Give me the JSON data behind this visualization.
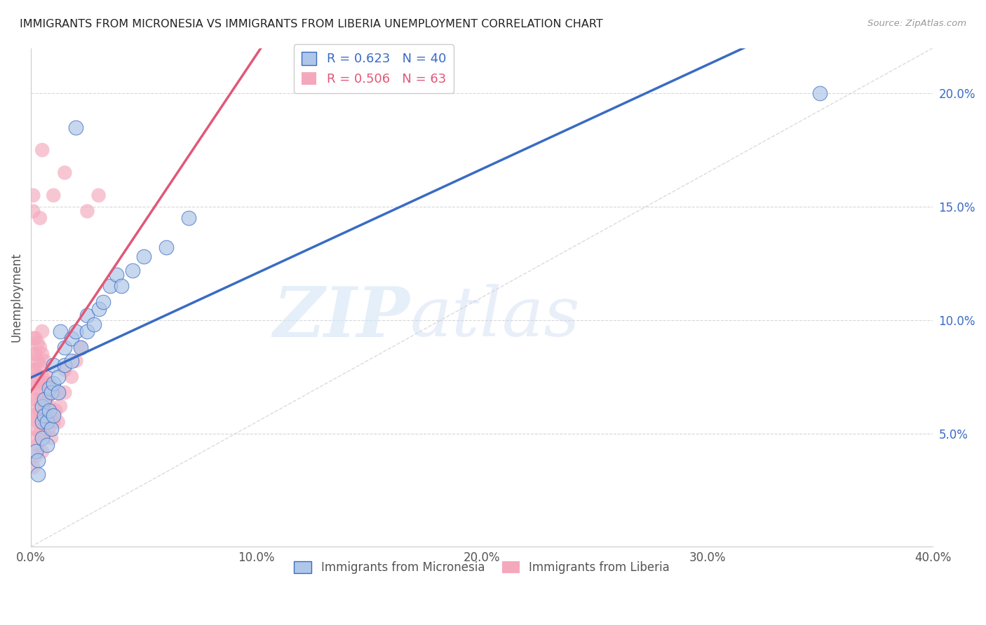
{
  "title": "IMMIGRANTS FROM MICRONESIA VS IMMIGRANTS FROM LIBERIA UNEMPLOYMENT CORRELATION CHART",
  "source": "Source: ZipAtlas.com",
  "xlabel": "",
  "ylabel": "Unemployment",
  "xlim": [
    0.0,
    0.4
  ],
  "ylim": [
    0.0,
    0.22
  ],
  "xticks": [
    0.0,
    0.1,
    0.2,
    0.3,
    0.4
  ],
  "xtick_labels": [
    "0.0%",
    "10.0%",
    "20.0%",
    "30.0%",
    "40.0%"
  ],
  "yticks": [
    0.05,
    0.1,
    0.15,
    0.2
  ],
  "ytick_labels": [
    "5.0%",
    "10.0%",
    "15.0%",
    "20.0%"
  ],
  "micronesia_color": "#aec6e8",
  "liberia_color": "#f4a8bc",
  "micronesia_R": 0.623,
  "micronesia_N": 40,
  "liberia_R": 0.506,
  "liberia_N": 63,
  "micronesia_label": "Immigrants from Micronesia",
  "liberia_label": "Immigrants from Liberia",
  "watermark_zip": "ZIP",
  "watermark_atlas": "atlas",
  "background_color": "#ffffff",
  "grid_color": "#d8d8d8",
  "micronesia_line_color": "#3a6bc4",
  "liberia_line_color": "#e05878",
  "ref_line_color": "#cccccc",
  "micronesia_points": [
    [
      0.002,
      0.042
    ],
    [
      0.003,
      0.038
    ],
    [
      0.003,
      0.032
    ],
    [
      0.005,
      0.048
    ],
    [
      0.005,
      0.055
    ],
    [
      0.005,
      0.062
    ],
    [
      0.006,
      0.058
    ],
    [
      0.006,
      0.065
    ],
    [
      0.007,
      0.045
    ],
    [
      0.007,
      0.055
    ],
    [
      0.008,
      0.06
    ],
    [
      0.008,
      0.07
    ],
    [
      0.009,
      0.052
    ],
    [
      0.009,
      0.068
    ],
    [
      0.01,
      0.058
    ],
    [
      0.01,
      0.072
    ],
    [
      0.01,
      0.08
    ],
    [
      0.012,
      0.068
    ],
    [
      0.012,
      0.075
    ],
    [
      0.013,
      0.095
    ],
    [
      0.015,
      0.08
    ],
    [
      0.015,
      0.088
    ],
    [
      0.018,
      0.082
    ],
    [
      0.018,
      0.092
    ],
    [
      0.02,
      0.095
    ],
    [
      0.022,
      0.088
    ],
    [
      0.025,
      0.095
    ],
    [
      0.025,
      0.102
    ],
    [
      0.028,
      0.098
    ],
    [
      0.03,
      0.105
    ],
    [
      0.032,
      0.108
    ],
    [
      0.035,
      0.115
    ],
    [
      0.038,
      0.12
    ],
    [
      0.04,
      0.115
    ],
    [
      0.045,
      0.122
    ],
    [
      0.05,
      0.128
    ],
    [
      0.06,
      0.132
    ],
    [
      0.07,
      0.145
    ],
    [
      0.02,
      0.185
    ],
    [
      0.35,
      0.2
    ]
  ],
  "liberia_points": [
    [
      0.001,
      0.035
    ],
    [
      0.001,
      0.048
    ],
    [
      0.001,
      0.058
    ],
    [
      0.001,
      0.065
    ],
    [
      0.001,
      0.072
    ],
    [
      0.001,
      0.078
    ],
    [
      0.001,
      0.085
    ],
    [
      0.001,
      0.092
    ],
    [
      0.002,
      0.04
    ],
    [
      0.002,
      0.052
    ],
    [
      0.002,
      0.06
    ],
    [
      0.002,
      0.07
    ],
    [
      0.002,
      0.078
    ],
    [
      0.002,
      0.085
    ],
    [
      0.002,
      0.092
    ],
    [
      0.003,
      0.045
    ],
    [
      0.003,
      0.055
    ],
    [
      0.003,
      0.065
    ],
    [
      0.003,
      0.075
    ],
    [
      0.003,
      0.082
    ],
    [
      0.003,
      0.09
    ],
    [
      0.004,
      0.05
    ],
    [
      0.004,
      0.06
    ],
    [
      0.004,
      0.07
    ],
    [
      0.004,
      0.08
    ],
    [
      0.004,
      0.088
    ],
    [
      0.005,
      0.042
    ],
    [
      0.005,
      0.055
    ],
    [
      0.005,
      0.065
    ],
    [
      0.005,
      0.075
    ],
    [
      0.005,
      0.085
    ],
    [
      0.005,
      0.095
    ],
    [
      0.006,
      0.05
    ],
    [
      0.006,
      0.062
    ],
    [
      0.006,
      0.072
    ],
    [
      0.006,
      0.082
    ],
    [
      0.007,
      0.055
    ],
    [
      0.007,
      0.065
    ],
    [
      0.007,
      0.075
    ],
    [
      0.008,
      0.052
    ],
    [
      0.008,
      0.062
    ],
    [
      0.008,
      0.072
    ],
    [
      0.009,
      0.048
    ],
    [
      0.009,
      0.058
    ],
    [
      0.01,
      0.055
    ],
    [
      0.01,
      0.068
    ],
    [
      0.011,
      0.06
    ],
    [
      0.012,
      0.055
    ],
    [
      0.012,
      0.068
    ],
    [
      0.013,
      0.062
    ],
    [
      0.015,
      0.068
    ],
    [
      0.015,
      0.078
    ],
    [
      0.018,
      0.075
    ],
    [
      0.02,
      0.082
    ],
    [
      0.022,
      0.088
    ],
    [
      0.001,
      0.148
    ],
    [
      0.001,
      0.155
    ],
    [
      0.004,
      0.145
    ],
    [
      0.01,
      0.155
    ],
    [
      0.005,
      0.175
    ],
    [
      0.015,
      0.165
    ],
    [
      0.025,
      0.148
    ],
    [
      0.03,
      0.155
    ]
  ]
}
